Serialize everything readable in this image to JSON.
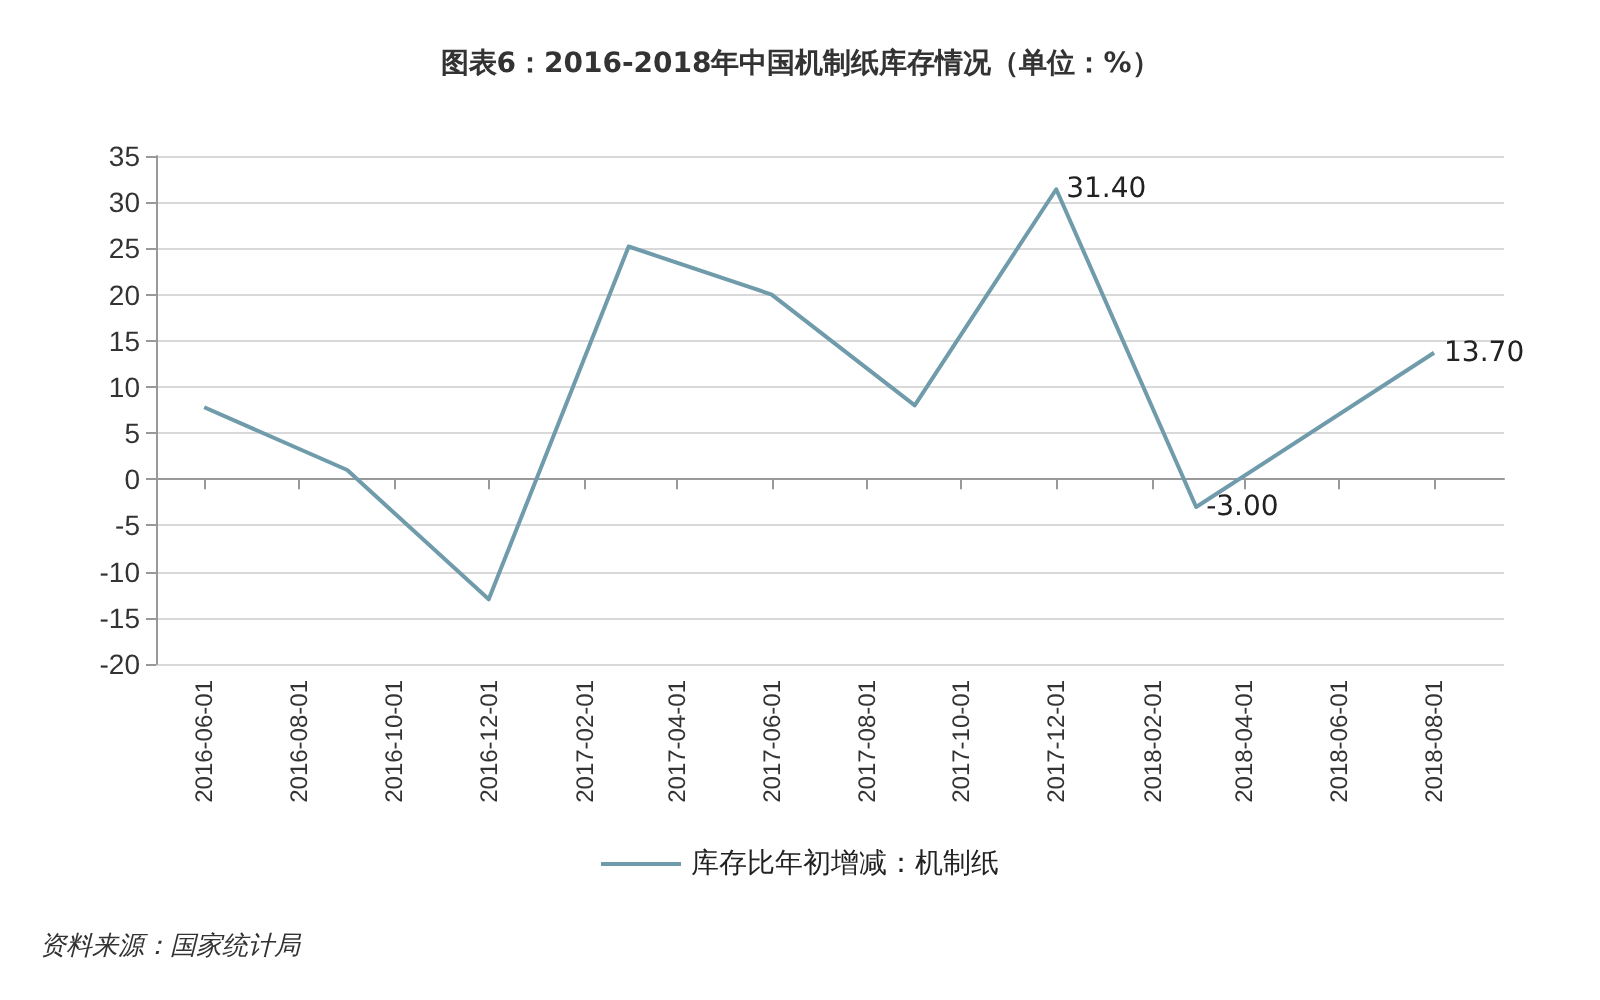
{
  "chart_data": {
    "type": "line",
    "title": "图表6：2016-2018年中国机制纸库存情况（单位：%）",
    "x": [
      "2016-06-01",
      "2016-09-01",
      "2016-12-01",
      "2017-03-01",
      "2017-06-01",
      "2017-09-01",
      "2017-12-01",
      "2018-03-01",
      "2018-08-01"
    ],
    "series": [
      {
        "name": "库存比年初增减：机制纸",
        "color": "#6f9bab",
        "values": [
          7.8,
          1.0,
          -13.0,
          25.2,
          20.0,
          8.0,
          31.4,
          -3.0,
          13.7
        ],
        "value_labels": [
          null,
          null,
          null,
          null,
          null,
          null,
          "31.40",
          "-3.00",
          "13.70"
        ]
      }
    ],
    "xlim": [
      "2016-05-01",
      "2018-09-15"
    ],
    "xticks": [
      "2016-06-01",
      "2016-08-01",
      "2016-10-01",
      "2016-12-01",
      "2017-02-01",
      "2017-04-01",
      "2017-06-01",
      "2017-08-01",
      "2017-10-01",
      "2017-12-01",
      "2018-02-01",
      "2018-04-01",
      "2018-06-01",
      "2018-08-01"
    ],
    "ylim": [
      -20,
      35
    ],
    "yticks": [
      -20,
      -15,
      -10,
      -5,
      0,
      5,
      10,
      15,
      20,
      25,
      30,
      35
    ],
    "grid": "y",
    "legend": "bottom",
    "marker": "none",
    "line_style": "solid",
    "annotations": [
      "资料来源：国家统计局"
    ]
  }
}
